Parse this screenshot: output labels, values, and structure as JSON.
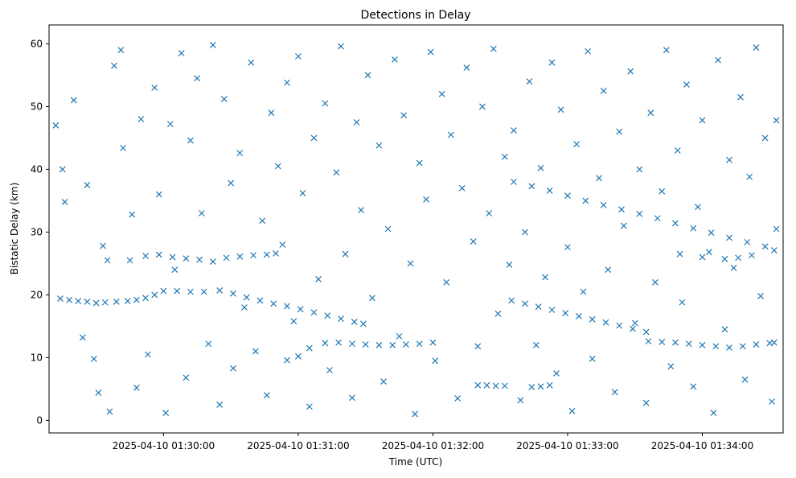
{
  "chart_data": {
    "type": "scatter",
    "title": "Detections in Delay",
    "xlabel": "Time (UTC)",
    "ylabel": "Bistatic Delay (km)",
    "x_ticks": [
      "2025-04-10 01:30:00",
      "2025-04-10 01:31:00",
      "2025-04-10 01:32:00",
      "2025-04-10 01:33:00",
      "2025-04-10 01:34:00"
    ],
    "y_ticks": [
      0,
      10,
      20,
      30,
      40,
      50,
      60
    ],
    "xlim": [
      "2025-04-10 01:29:09",
      "2025-04-10 01:34:36"
    ],
    "ylim": [
      -2,
      63
    ],
    "marker": "x",
    "color": "#1f77b4",
    "grid": false,
    "series": [
      {
        "points": [
          [
            "2025-04-10 01:29:14",
            19.4
          ],
          [
            "2025-04-10 01:29:18",
            19.2
          ],
          [
            "2025-04-10 01:29:22",
            19.0
          ],
          [
            "2025-04-10 01:29:26",
            18.9
          ],
          [
            "2025-04-10 01:29:30",
            18.7
          ],
          [
            "2025-04-10 01:29:34",
            18.8
          ],
          [
            "2025-04-10 01:29:39",
            18.9
          ],
          [
            "2025-04-10 01:29:44",
            19.0
          ],
          [
            "2025-04-10 01:29:48",
            19.2
          ],
          [
            "2025-04-10 01:29:52",
            19.5
          ],
          [
            "2025-04-10 01:29:56",
            20.0
          ],
          [
            "2025-04-10 01:30:00",
            20.6
          ],
          [
            "2025-04-10 01:30:06",
            20.6
          ],
          [
            "2025-04-10 01:30:12",
            20.5
          ],
          [
            "2025-04-10 01:30:18",
            20.5
          ],
          [
            "2025-04-10 01:29:35",
            25.5
          ],
          [
            "2025-04-10 01:29:45",
            25.5
          ],
          [
            "2025-04-10 01:29:52",
            26.2
          ],
          [
            "2025-04-10 01:29:58",
            26.4
          ],
          [
            "2025-04-10 01:30:04",
            26.0
          ],
          [
            "2025-04-10 01:30:10",
            25.8
          ],
          [
            "2025-04-10 01:30:16",
            25.6
          ],
          [
            "2025-04-10 01:30:22",
            25.3
          ],
          [
            "2025-04-10 01:30:28",
            25.9
          ],
          [
            "2025-04-10 01:30:34",
            26.1
          ],
          [
            "2025-04-10 01:30:40",
            26.3
          ],
          [
            "2025-04-10 01:30:46",
            26.4
          ],
          [
            "2025-04-10 01:30:50",
            26.6
          ],
          [
            "2025-04-10 01:30:25",
            20.7
          ],
          [
            "2025-04-10 01:30:31",
            20.2
          ],
          [
            "2025-04-10 01:30:37",
            19.6
          ],
          [
            "2025-04-10 01:30:43",
            19.1
          ],
          [
            "2025-04-10 01:30:49",
            18.6
          ],
          [
            "2025-04-10 01:30:55",
            18.2
          ],
          [
            "2025-04-10 01:31:01",
            17.7
          ],
          [
            "2025-04-10 01:31:07",
            17.2
          ],
          [
            "2025-04-10 01:31:13",
            16.7
          ],
          [
            "2025-04-10 01:31:19",
            16.2
          ],
          [
            "2025-04-10 01:31:25",
            15.7
          ],
          [
            "2025-04-10 01:31:29",
            15.4
          ],
          [
            "2025-04-10 01:30:55",
            9.6
          ],
          [
            "2025-04-10 01:31:00",
            10.2
          ],
          [
            "2025-04-10 01:31:05",
            11.5
          ],
          [
            "2025-04-10 01:31:12",
            12.3
          ],
          [
            "2025-04-10 01:31:18",
            12.4
          ],
          [
            "2025-04-10 01:31:24",
            12.2
          ],
          [
            "2025-04-10 01:31:30",
            12.1
          ],
          [
            "2025-04-10 01:31:36",
            12.0
          ],
          [
            "2025-04-10 01:31:42",
            12.0
          ],
          [
            "2025-04-10 01:31:48",
            12.1
          ],
          [
            "2025-04-10 01:31:54",
            12.2
          ],
          [
            "2025-04-10 01:32:00",
            12.4
          ],
          [
            "2025-04-10 01:32:20",
            5.6
          ],
          [
            "2025-04-10 01:32:24",
            5.6
          ],
          [
            "2025-04-10 01:32:28",
            5.5
          ],
          [
            "2025-04-10 01:32:32",
            5.5
          ],
          [
            "2025-04-10 01:32:44",
            5.3
          ],
          [
            "2025-04-10 01:32:48",
            5.4
          ],
          [
            "2025-04-10 01:32:52",
            5.6
          ],
          [
            "2025-04-10 01:32:35",
            19.1
          ],
          [
            "2025-04-10 01:32:41",
            18.6
          ],
          [
            "2025-04-10 01:32:47",
            18.1
          ],
          [
            "2025-04-10 01:32:53",
            17.6
          ],
          [
            "2025-04-10 01:32:59",
            17.1
          ],
          [
            "2025-04-10 01:33:05",
            16.6
          ],
          [
            "2025-04-10 01:33:11",
            16.1
          ],
          [
            "2025-04-10 01:33:17",
            15.6
          ],
          [
            "2025-04-10 01:33:23",
            15.1
          ],
          [
            "2025-04-10 01:33:29",
            14.6
          ],
          [
            "2025-04-10 01:33:35",
            14.1
          ],
          [
            "2025-04-10 01:32:36",
            38.0
          ],
          [
            "2025-04-10 01:32:44",
            37.3
          ],
          [
            "2025-04-10 01:32:52",
            36.6
          ],
          [
            "2025-04-10 01:33:00",
            35.8
          ],
          [
            "2025-04-10 01:33:08",
            35.0
          ],
          [
            "2025-04-10 01:33:16",
            34.3
          ],
          [
            "2025-04-10 01:33:24",
            33.6
          ],
          [
            "2025-04-10 01:33:32",
            32.9
          ],
          [
            "2025-04-10 01:33:40",
            32.2
          ],
          [
            "2025-04-10 01:33:48",
            31.4
          ],
          [
            "2025-04-10 01:33:56",
            30.6
          ],
          [
            "2025-04-10 01:34:04",
            29.9
          ],
          [
            "2025-04-10 01:34:12",
            29.1
          ],
          [
            "2025-04-10 01:34:20",
            28.4
          ],
          [
            "2025-04-10 01:34:28",
            27.7
          ],
          [
            "2025-04-10 01:34:32",
            27.1
          ],
          [
            "2025-04-10 01:33:36",
            12.6
          ],
          [
            "2025-04-10 01:33:42",
            12.5
          ],
          [
            "2025-04-10 01:33:48",
            12.4
          ],
          [
            "2025-04-10 01:33:54",
            12.2
          ],
          [
            "2025-04-10 01:34:00",
            12.0
          ],
          [
            "2025-04-10 01:34:06",
            11.8
          ],
          [
            "2025-04-10 01:34:12",
            11.6
          ],
          [
            "2025-04-10 01:34:18",
            11.8
          ],
          [
            "2025-04-10 01:34:24",
            12.1
          ],
          [
            "2025-04-10 01:34:30",
            12.3
          ],
          [
            "2025-04-10 01:33:50",
            26.5
          ],
          [
            "2025-04-10 01:34:00",
            26.0
          ],
          [
            "2025-04-10 01:34:10",
            25.7
          ],
          [
            "2025-04-10 01:34:16",
            25.9
          ],
          [
            "2025-04-10 01:34:22",
            26.3
          ],
          [
            "2025-04-10 01:29:12",
            47.0
          ],
          [
            "2025-04-10 01:29:15",
            40.0
          ],
          [
            "2025-04-10 01:29:16",
            34.8
          ],
          [
            "2025-04-10 01:29:20",
            51.0
          ],
          [
            "2025-04-10 01:29:24",
            13.2
          ],
          [
            "2025-04-10 01:29:26",
            37.5
          ],
          [
            "2025-04-10 01:29:29",
            9.8
          ],
          [
            "2025-04-10 01:29:31",
            4.4
          ],
          [
            "2025-04-10 01:29:33",
            27.8
          ],
          [
            "2025-04-10 01:29:36",
            1.4
          ],
          [
            "2025-04-10 01:29:38",
            56.5
          ],
          [
            "2025-04-10 01:29:41",
            59.0
          ],
          [
            "2025-04-10 01:29:42",
            43.4
          ],
          [
            "2025-04-10 01:29:46",
            32.8
          ],
          [
            "2025-04-10 01:29:48",
            5.2
          ],
          [
            "2025-04-10 01:29:50",
            48.0
          ],
          [
            "2025-04-10 01:29:53",
            10.5
          ],
          [
            "2025-04-10 01:29:56",
            53.0
          ],
          [
            "2025-04-10 01:29:58",
            36.0
          ],
          [
            "2025-04-10 01:30:01",
            1.2
          ],
          [
            "2025-04-10 01:30:03",
            47.2
          ],
          [
            "2025-04-10 01:30:05",
            24.0
          ],
          [
            "2025-04-10 01:30:08",
            58.5
          ],
          [
            "2025-04-10 01:30:10",
            6.8
          ],
          [
            "2025-04-10 01:30:12",
            44.6
          ],
          [
            "2025-04-10 01:30:15",
            54.5
          ],
          [
            "2025-04-10 01:30:17",
            33.0
          ],
          [
            "2025-04-10 01:30:20",
            12.2
          ],
          [
            "2025-04-10 01:30:22",
            59.8
          ],
          [
            "2025-04-10 01:30:25",
            2.5
          ],
          [
            "2025-04-10 01:30:27",
            51.2
          ],
          [
            "2025-04-10 01:30:30",
            37.8
          ],
          [
            "2025-04-10 01:30:31",
            8.3
          ],
          [
            "2025-04-10 01:30:34",
            42.6
          ],
          [
            "2025-04-10 01:30:36",
            18.0
          ],
          [
            "2025-04-10 01:30:39",
            57.0
          ],
          [
            "2025-04-10 01:30:41",
            11.0
          ],
          [
            "2025-04-10 01:30:44",
            31.8
          ],
          [
            "2025-04-10 01:30:46",
            4.0
          ],
          [
            "2025-04-10 01:30:48",
            49.0
          ],
          [
            "2025-04-10 01:30:51",
            40.5
          ],
          [
            "2025-04-10 01:30:53",
            28.0
          ],
          [
            "2025-04-10 01:30:55",
            53.8
          ],
          [
            "2025-04-10 01:30:58",
            15.8
          ],
          [
            "2025-04-10 01:31:00",
            58.0
          ],
          [
            "2025-04-10 01:31:02",
            36.2
          ],
          [
            "2025-04-10 01:31:05",
            2.2
          ],
          [
            "2025-04-10 01:31:07",
            45.0
          ],
          [
            "2025-04-10 01:31:09",
            22.5
          ],
          [
            "2025-04-10 01:31:12",
            50.5
          ],
          [
            "2025-04-10 01:31:14",
            8.0
          ],
          [
            "2025-04-10 01:31:17",
            39.5
          ],
          [
            "2025-04-10 01:31:19",
            59.6
          ],
          [
            "2025-04-10 01:31:21",
            26.5
          ],
          [
            "2025-04-10 01:31:24",
            3.6
          ],
          [
            "2025-04-10 01:31:26",
            47.5
          ],
          [
            "2025-04-10 01:31:28",
            33.5
          ],
          [
            "2025-04-10 01:31:31",
            55.0
          ],
          [
            "2025-04-10 01:31:33",
            19.5
          ],
          [
            "2025-04-10 01:31:36",
            43.8
          ],
          [
            "2025-04-10 01:31:38",
            6.2
          ],
          [
            "2025-04-10 01:31:40",
            30.5
          ],
          [
            "2025-04-10 01:31:43",
            57.5
          ],
          [
            "2025-04-10 01:31:45",
            13.4
          ],
          [
            "2025-04-10 01:31:47",
            48.6
          ],
          [
            "2025-04-10 01:31:50",
            25.0
          ],
          [
            "2025-04-10 01:31:52",
            1.0
          ],
          [
            "2025-04-10 01:31:54",
            41.0
          ],
          [
            "2025-04-10 01:31:57",
            35.2
          ],
          [
            "2025-04-10 01:31:59",
            58.7
          ],
          [
            "2025-04-10 01:32:01",
            9.5
          ],
          [
            "2025-04-10 01:32:04",
            52.0
          ],
          [
            "2025-04-10 01:32:06",
            22.0
          ],
          [
            "2025-04-10 01:32:08",
            45.5
          ],
          [
            "2025-04-10 01:32:11",
            3.5
          ],
          [
            "2025-04-10 01:32:13",
            37.0
          ],
          [
            "2025-04-10 01:32:15",
            56.2
          ],
          [
            "2025-04-10 01:32:18",
            28.5
          ],
          [
            "2025-04-10 01:32:20",
            11.8
          ],
          [
            "2025-04-10 01:32:22",
            50.0
          ],
          [
            "2025-04-10 01:32:25",
            33.0
          ],
          [
            "2025-04-10 01:32:27",
            59.2
          ],
          [
            "2025-04-10 01:32:29",
            17.0
          ],
          [
            "2025-04-10 01:32:32",
            42.0
          ],
          [
            "2025-04-10 01:32:34",
            24.8
          ],
          [
            "2025-04-10 01:32:36",
            46.2
          ],
          [
            "2025-04-10 01:32:39",
            3.2
          ],
          [
            "2025-04-10 01:32:41",
            30.0
          ],
          [
            "2025-04-10 01:32:43",
            54.0
          ],
          [
            "2025-04-10 01:32:46",
            12.0
          ],
          [
            "2025-04-10 01:32:48",
            40.2
          ],
          [
            "2025-04-10 01:32:50",
            22.8
          ],
          [
            "2025-04-10 01:32:53",
            57.0
          ],
          [
            "2025-04-10 01:32:55",
            7.5
          ],
          [
            "2025-04-10 01:32:57",
            49.5
          ],
          [
            "2025-04-10 01:33:00",
            27.6
          ],
          [
            "2025-04-10 01:33:02",
            1.5
          ],
          [
            "2025-04-10 01:33:04",
            44.0
          ],
          [
            "2025-04-10 01:33:07",
            20.5
          ],
          [
            "2025-04-10 01:33:09",
            58.8
          ],
          [
            "2025-04-10 01:33:11",
            9.8
          ],
          [
            "2025-04-10 01:33:14",
            38.6
          ],
          [
            "2025-04-10 01:33:16",
            52.5
          ],
          [
            "2025-04-10 01:33:18",
            24.0
          ],
          [
            "2025-04-10 01:33:21",
            4.5
          ],
          [
            "2025-04-10 01:33:23",
            46.0
          ],
          [
            "2025-04-10 01:33:25",
            31.0
          ],
          [
            "2025-04-10 01:33:28",
            55.6
          ],
          [
            "2025-04-10 01:33:30",
            15.5
          ],
          [
            "2025-04-10 01:33:32",
            40.0
          ],
          [
            "2025-04-10 01:33:35",
            2.8
          ],
          [
            "2025-04-10 01:33:37",
            49.0
          ],
          [
            "2025-04-10 01:33:39",
            22.0
          ],
          [
            "2025-04-10 01:33:42",
            36.5
          ],
          [
            "2025-04-10 01:33:44",
            59.0
          ],
          [
            "2025-04-10 01:33:46",
            8.6
          ],
          [
            "2025-04-10 01:33:49",
            43.0
          ],
          [
            "2025-04-10 01:33:51",
            18.8
          ],
          [
            "2025-04-10 01:33:53",
            53.5
          ],
          [
            "2025-04-10 01:33:56",
            5.4
          ],
          [
            "2025-04-10 01:33:58",
            34.0
          ],
          [
            "2025-04-10 01:34:00",
            47.8
          ],
          [
            "2025-04-10 01:34:03",
            26.8
          ],
          [
            "2025-04-10 01:34:05",
            1.2
          ],
          [
            "2025-04-10 01:34:07",
            57.4
          ],
          [
            "2025-04-10 01:34:10",
            14.5
          ],
          [
            "2025-04-10 01:34:12",
            41.5
          ],
          [
            "2025-04-10 01:34:14",
            24.3
          ],
          [
            "2025-04-10 01:34:17",
            51.5
          ],
          [
            "2025-04-10 01:34:19",
            6.5
          ],
          [
            "2025-04-10 01:34:21",
            38.8
          ],
          [
            "2025-04-10 01:34:24",
            59.4
          ],
          [
            "2025-04-10 01:34:26",
            19.8
          ],
          [
            "2025-04-10 01:34:28",
            45.0
          ],
          [
            "2025-04-10 01:34:31",
            3.0
          ],
          [
            "2025-04-10 01:34:33",
            47.8
          ],
          [
            "2025-04-10 01:34:33",
            30.5
          ],
          [
            "2025-04-10 01:34:32",
            12.4
          ]
        ]
      }
    ]
  }
}
